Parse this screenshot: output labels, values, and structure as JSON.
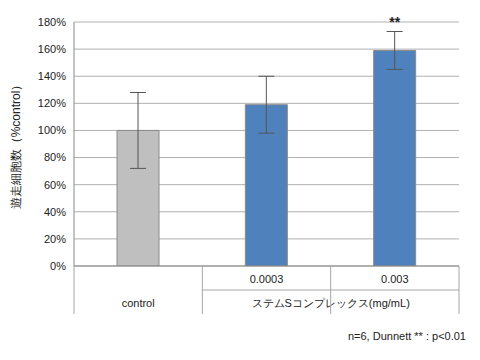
{
  "chart_data": {
    "type": "bar",
    "y_label": "遊走細胞数（%control）",
    "categories": [
      "control",
      "0.0003",
      "0.003"
    ],
    "x_group": {
      "label": "ステムSコンプレックス(mg/mL)",
      "categories": [
        "0.0003",
        "0.003"
      ]
    },
    "values": [
      100,
      119,
      159
    ],
    "errors": [
      28,
      21,
      14
    ],
    "colors": [
      "#bfbfbf",
      "#4f81bd",
      "#4f81bd"
    ],
    "ylim": [
      0,
      180
    ],
    "yticks": [
      {
        "value": 0,
        "label": "0%"
      },
      {
        "value": 20,
        "label": "20%"
      },
      {
        "value": 40,
        "label": "40%"
      },
      {
        "value": 60,
        "label": "60%"
      },
      {
        "value": 80,
        "label": "80%"
      },
      {
        "value": 100,
        "label": "100%"
      },
      {
        "value": 120,
        "label": "120%"
      },
      {
        "value": 140,
        "label": "140%"
      },
      {
        "value": 160,
        "label": "160%"
      },
      {
        "value": 180,
        "label": "180%"
      }
    ],
    "grid": true,
    "annotations": [
      {
        "category": "0.003",
        "text": "**"
      }
    ],
    "footnote": "n=6, Dunnett ** : p<0.01"
  }
}
